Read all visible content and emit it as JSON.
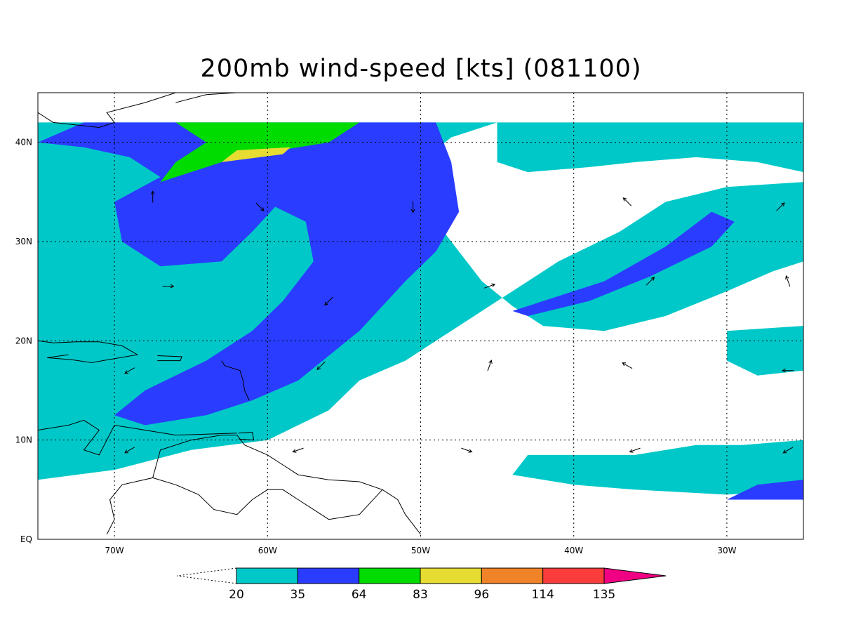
{
  "title": "200mb wind-speed [kts] (081100)",
  "map": {
    "lon_range": [
      -75,
      -25
    ],
    "lat_range": [
      0,
      45
    ],
    "data_lat_max": 42,
    "gridlines": "dotted",
    "lat_ticks": [
      {
        "value": 0,
        "label": "EQ"
      },
      {
        "value": 10,
        "label": "10N"
      },
      {
        "value": 20,
        "label": "20N"
      },
      {
        "value": 30,
        "label": "30N"
      },
      {
        "value": 40,
        "label": "40N"
      }
    ],
    "lon_ticks": [
      {
        "value": -70,
        "label": "70W"
      },
      {
        "value": -60,
        "label": "60W"
      },
      {
        "value": -50,
        "label": "50W"
      },
      {
        "value": -40,
        "label": "40W"
      },
      {
        "value": -30,
        "label": "30W"
      }
    ]
  },
  "levels": [
    {
      "min": 20,
      "max": 35,
      "color": "#00c8c8"
    },
    {
      "min": 35,
      "max": 64,
      "color": "#2a3cff"
    },
    {
      "min": 64,
      "max": 83,
      "color": "#00dc00"
    },
    {
      "min": 83,
      "max": 96,
      "color": "#e6dc32"
    },
    {
      "min": 96,
      "max": 114,
      "color": "#f08228"
    },
    {
      "min": 114,
      "max": 135,
      "color": "#fa3c3c"
    },
    {
      "min": 135,
      "max": null,
      "color": "#f00082"
    }
  ],
  "colorbar": {
    "labels": [
      "20",
      "35",
      "64",
      "83",
      "96",
      "114",
      "135"
    ],
    "below_min_color": "#ffffff",
    "above_max_color": "#f00082"
  },
  "shaded_regions": [
    {
      "level": "20-35",
      "area": "Mid-Atlantic jet band and western basin ring",
      "points": [
        [
          -75,
          42
        ],
        [
          -45,
          42
        ],
        [
          -48,
          40.5
        ],
        [
          -50,
          38
        ],
        [
          -50,
          34
        ],
        [
          -48,
          30
        ],
        [
          -46,
          26
        ],
        [
          -44,
          23.5
        ],
        [
          -42,
          21.5
        ],
        [
          -38,
          21
        ],
        [
          -34,
          22.5
        ],
        [
          -30,
          25
        ],
        [
          -27,
          27
        ],
        [
          -25,
          28
        ],
        [
          -25,
          36
        ],
        [
          -30,
          35.5
        ],
        [
          -34,
          34
        ],
        [
          -37,
          31
        ],
        [
          -41,
          28
        ],
        [
          -45,
          24
        ],
        [
          -48,
          21
        ],
        [
          -51,
          18
        ],
        [
          -54,
          16
        ],
        [
          -56,
          13
        ],
        [
          -60,
          10
        ],
        [
          -65,
          9
        ],
        [
          -70,
          7
        ],
        [
          -75,
          6
        ]
      ]
    },
    {
      "level": "20-35",
      "area": "northeast band",
      "points": [
        [
          -45,
          42
        ],
        [
          -25,
          42
        ],
        [
          -25,
          37
        ],
        [
          -28,
          38
        ],
        [
          -32,
          38.5
        ],
        [
          -36,
          38
        ],
        [
          -39,
          37.5
        ],
        [
          -43,
          37
        ],
        [
          -45,
          38
        ]
      ]
    },
    {
      "level": "20-35",
      "area": "southeast patch",
      "points": [
        [
          -43,
          8.5
        ],
        [
          -36,
          8.5
        ],
        [
          -32,
          9.5
        ],
        [
          -29,
          9.5
        ],
        [
          -25,
          10
        ],
        [
          -25,
          5
        ],
        [
          -30,
          4.5
        ],
        [
          -36,
          5
        ],
        [
          -40,
          5.5
        ],
        [
          -44,
          6.5
        ]
      ]
    },
    {
      "level": "20-35",
      "area": "eastern edge patch",
      "points": [
        [
          -30,
          21
        ],
        [
          -25,
          21.5
        ],
        [
          -25,
          17
        ],
        [
          -28,
          16.5
        ],
        [
          -30,
          18
        ]
      ]
    },
    {
      "level": "35-64",
      "area": "main jet",
      "points": [
        [
          -72,
          42
        ],
        [
          -49,
          42
        ],
        [
          -48,
          38
        ],
        [
          -47.5,
          33
        ],
        [
          -49,
          29
        ],
        [
          -51,
          26
        ],
        [
          -54,
          21
        ],
        [
          -58,
          16
        ],
        [
          -61,
          14
        ],
        [
          -64,
          12.5
        ],
        [
          -68,
          11.5
        ],
        [
          -70,
          12.5
        ],
        [
          -68,
          15
        ],
        [
          -64,
          18
        ],
        [
          -61,
          21
        ],
        [
          -59,
          24
        ],
        [
          -57,
          28
        ],
        [
          -57.5,
          32
        ],
        [
          -59.5,
          33.5
        ],
        [
          -61,
          31
        ],
        [
          -63,
          28
        ],
        [
          -67,
          27.5
        ],
        [
          -69.5,
          30
        ],
        [
          -70,
          34
        ],
        [
          -67,
          36.5
        ],
        [
          -69,
          38.5
        ],
        [
          -72,
          39.5
        ],
        [
          -75,
          40
        ]
      ]
    },
    {
      "level": "35-64",
      "area": "eastern jet core",
      "points": [
        [
          -44,
          23
        ],
        [
          -38,
          26
        ],
        [
          -34,
          29.5
        ],
        [
          -31,
          33
        ],
        [
          -29.5,
          32
        ],
        [
          -31,
          29.5
        ],
        [
          -35,
          26.5
        ],
        [
          -39,
          24
        ],
        [
          -43,
          22.5
        ]
      ]
    },
    {
      "level": "35-64",
      "area": "southeast corner",
      "points": [
        [
          -30,
          4
        ],
        [
          -25,
          4
        ],
        [
          -25,
          6
        ],
        [
          -28,
          5.5
        ]
      ]
    },
    {
      "level": "64-83",
      "area": "northern maximum",
      "points": [
        [
          -67,
          36
        ],
        [
          -62,
          38.5
        ],
        [
          -56,
          40
        ],
        [
          -54,
          42
        ],
        [
          -66,
          42
        ],
        [
          -64,
          40
        ],
        [
          -66,
          38
        ]
      ]
    },
    {
      "level": "83-96",
      "area": "northern core",
      "points": [
        [
          -63,
          38
        ],
        [
          -59,
          38.8
        ],
        [
          -58.5,
          39.5
        ],
        [
          -62,
          39.2
        ]
      ]
    }
  ],
  "wind_arrows": [
    {
      "lon": -67.5,
      "lat": 34.5,
      "dir": 0
    },
    {
      "lon": -60.5,
      "lat": 33.5,
      "dir": 135
    },
    {
      "lon": -50.5,
      "lat": 33.5,
      "dir": 180
    },
    {
      "lon": -36.5,
      "lat": 34,
      "dir": 315
    },
    {
      "lon": -26.5,
      "lat": 33.5,
      "dir": 45
    },
    {
      "lon": -66.5,
      "lat": 25.5,
      "dir": 90
    },
    {
      "lon": -56,
      "lat": 24,
      "dir": 225
    },
    {
      "lon": -45.5,
      "lat": 25.5,
      "dir": 70
    },
    {
      "lon": -35,
      "lat": 26,
      "dir": 45
    },
    {
      "lon": -26,
      "lat": 26,
      "dir": 340
    },
    {
      "lon": -69,
      "lat": 17,
      "dir": 240
    },
    {
      "lon": -56.5,
      "lat": 17.5,
      "dir": 225
    },
    {
      "lon": -45.5,
      "lat": 17.5,
      "dir": 20
    },
    {
      "lon": -36.5,
      "lat": 17.5,
      "dir": 300
    },
    {
      "lon": -26,
      "lat": 17,
      "dir": 270
    },
    {
      "lon": -69,
      "lat": 9,
      "dir": 240
    },
    {
      "lon": -58,
      "lat": 9,
      "dir": 250
    },
    {
      "lon": -47,
      "lat": 9,
      "dir": 110
    },
    {
      "lon": -36,
      "lat": 9,
      "dir": 250
    },
    {
      "lon": -26,
      "lat": 9,
      "dir": 240
    }
  ],
  "coastlines": [
    {
      "name": "south-america",
      "points": [
        [
          -70.5,
          0.5
        ],
        [
          -70,
          2
        ],
        [
          -70.3,
          4
        ],
        [
          -69.5,
          5.5
        ],
        [
          -67.5,
          6.2
        ],
        [
          -67,
          9
        ],
        [
          -65,
          10
        ],
        [
          -63,
          10.5
        ],
        [
          -62,
          10.5
        ],
        [
          -61.5,
          9.5
        ],
        [
          -60,
          8.5
        ],
        [
          -59,
          7.5
        ],
        [
          -58,
          6.5
        ],
        [
          -56,
          6
        ],
        [
          -54,
          5.8
        ],
        [
          -52.5,
          5
        ],
        [
          -51.5,
          4
        ],
        [
          -51,
          2.5
        ],
        [
          -50.5,
          1.5
        ],
        [
          -50,
          0.5
        ]
      ]
    },
    {
      "name": "venezuela-interior",
      "points": [
        [
          -67.5,
          6.2
        ],
        [
          -66,
          5.5
        ],
        [
          -64.5,
          4.5
        ],
        [
          -63.5,
          3
        ],
        [
          -62,
          2.5
        ],
        [
          -61,
          4
        ],
        [
          -60,
          5
        ],
        [
          -59,
          5
        ],
        [
          -58,
          4
        ],
        [
          -57,
          3
        ],
        [
          -56,
          2
        ],
        [
          -54,
          2.5
        ],
        [
          -52.5,
          5
        ]
      ]
    },
    {
      "name": "central-coast",
      "points": [
        [
          -75,
          11
        ],
        [
          -73,
          11.5
        ],
        [
          -72,
          12
        ],
        [
          -71,
          11
        ],
        [
          -71.5,
          10
        ],
        [
          -72,
          9
        ],
        [
          -71,
          8.5
        ],
        [
          -70,
          11.5
        ],
        [
          -68,
          11
        ],
        [
          -66,
          10.5
        ],
        [
          -64,
          10.6
        ],
        [
          -62,
          10.7
        ]
      ]
    },
    {
      "name": "hispaniola-cuba",
      "points": [
        [
          -75,
          20
        ],
        [
          -74,
          19.8
        ],
        [
          -72.5,
          19.9
        ],
        [
          -71,
          19.9
        ],
        [
          -69.5,
          19.5
        ],
        [
          -68.5,
          18.6
        ],
        [
          -70,
          18.2
        ],
        [
          -71.5,
          17.8
        ],
        [
          -72.8,
          18.1
        ],
        [
          -74.4,
          18.3
        ],
        [
          -73,
          18.6
        ]
      ]
    },
    {
      "name": "puerto-rico",
      "points": [
        [
          -67.2,
          18.5
        ],
        [
          -65.6,
          18.4
        ],
        [
          -65.7,
          18
        ],
        [
          -67.2,
          18
        ]
      ]
    },
    {
      "name": "north-america",
      "points": [
        [
          -75,
          43
        ],
        [
          -74,
          42
        ],
        [
          -71,
          41.5
        ],
        [
          -70,
          42
        ],
        [
          -70.5,
          43
        ],
        [
          -68,
          44
        ],
        [
          -66,
          45
        ],
        [
          -64,
          45
        ],
        [
          -61,
          45.3
        ]
      ]
    },
    {
      "name": "nova-scotia",
      "points": [
        [
          -66,
          44
        ],
        [
          -64,
          44.8
        ],
        [
          -62,
          45
        ],
        [
          -60,
          45.5
        ],
        [
          -61.5,
          46.2
        ],
        [
          -64,
          46
        ],
        [
          -62,
          45
        ]
      ]
    },
    {
      "name": "lesser-antilles",
      "points": [
        [
          -61.2,
          14
        ],
        [
          -61.5,
          15
        ],
        [
          -61.6,
          16
        ],
        [
          -61.8,
          17
        ],
        [
          -62.8,
          17.5
        ],
        [
          -63,
          18
        ]
      ]
    },
    {
      "name": "trinidad",
      "points": [
        [
          -61.9,
          10.7
        ],
        [
          -61,
          10.8
        ],
        [
          -60.9,
          10
        ],
        [
          -61.9,
          10.1
        ]
      ]
    }
  ]
}
